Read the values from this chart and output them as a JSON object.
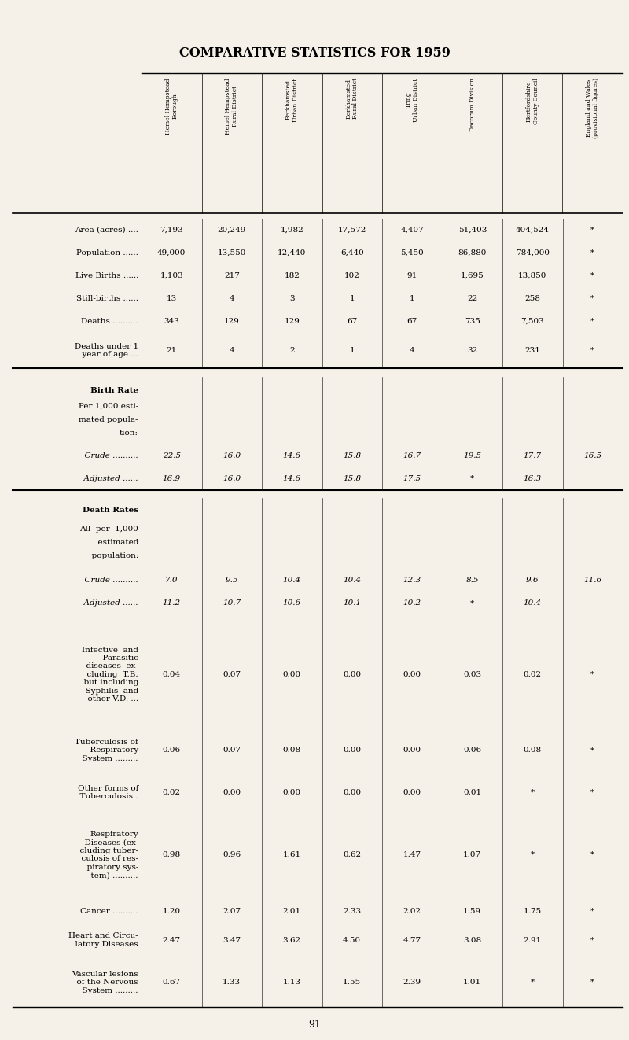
{
  "title": "COMPARATIVE STATISTICS FOR 1959",
  "bg_color": "#f5f0e8",
  "columns": [
    "Hemel Hempstead\nBorough",
    "Hemel Hempstead\nRural District",
    "Berkhamsted\nUrban District",
    "Berkhamsted\nRural District",
    "Tring\nUrban District",
    "Dacorum Division",
    "Hertfordshire\nCounty Council",
    "England and Wales\n(provisional figures)"
  ],
  "sections": [
    {
      "type": "data_block",
      "rows": [
        {
          "label": "Area (acres) ....",
          "values": [
            "7,193",
            "20,249",
            "1,982",
            "17,572",
            "4,407",
            "51,403",
            "404,524",
            "*"
          ]
        },
        {
          "label": "Population ......",
          "values": [
            "49,000",
            "13,550",
            "12,440",
            "6,440",
            "5,450",
            "86,880",
            "784,000",
            "*"
          ]
        },
        {
          "label": "Live Births ......",
          "values": [
            "1,103",
            "217",
            "182",
            "102",
            "91",
            "1,695",
            "13,850",
            "*"
          ]
        },
        {
          "label": "Still-births ......",
          "values": [
            "13",
            "4",
            "3",
            "1",
            "1",
            "22",
            "258",
            "*"
          ]
        },
        {
          "label": "Deaths ..........",
          "values": [
            "343",
            "129",
            "129",
            "67",
            "67",
            "735",
            "7,503",
            "*"
          ]
        },
        {
          "label": "Deaths under 1\n  year of age ...",
          "values": [
            "21",
            "4",
            "2",
            "1",
            "4",
            "32",
            "231",
            "*"
          ]
        }
      ]
    },
    {
      "type": "section_header",
      "label": "Birth Rate\nPer 1,000 esti-\nmated popula-\ntion:"
    },
    {
      "type": "data_block",
      "rows": [
        {
          "label": "  Crude ..........",
          "values": [
            "22.5",
            "16.0",
            "14.6",
            "15.8",
            "16.7",
            "19.5",
            "17.7",
            "16.5"
          ],
          "italic": true
        },
        {
          "label": "  Adjusted ......",
          "values": [
            "16.9",
            "16.0",
            "14.6",
            "15.8",
            "17.5",
            "*",
            "16.3",
            "—"
          ],
          "italic": true
        }
      ]
    },
    {
      "type": "section_header",
      "label": "Death Rates"
    },
    {
      "type": "subheader",
      "label": "All per 1,000\n  estimated\n  population:"
    },
    {
      "type": "data_block",
      "rows": [
        {
          "label": "  Crude ..........",
          "values": [
            "7.0",
            "9.5",
            "10.4",
            "10.4",
            "12.3",
            "8.5",
            "9.6",
            "11.6"
          ],
          "italic": true
        },
        {
          "label": "  Adjusted ......",
          "values": [
            "11.2",
            "10.7",
            "10.6",
            "10.1",
            "10.2",
            "*",
            "10.4",
            "—"
          ],
          "italic": true
        }
      ]
    },
    {
      "type": "data_block",
      "rows": [
        {
          "label": "Infective  and\n  Parasitic\n  diseases  ex-\n  cluding  T.B.\n  but including\n  Syphilis  and\n  other V.D. ...",
          "values": [
            "0.04",
            "0.07",
            "0.00",
            "0.00",
            "0.00",
            "0.03",
            "0.02",
            "*"
          ]
        },
        {
          "label": "Tuberculosis of\n  Respiratory\n  System .........",
          "values": [
            "0.06",
            "0.07",
            "0.08",
            "0.00",
            "0.00",
            "0.06",
            "0.08",
            "*"
          ]
        },
        {
          "label": "Other forms of\n  Tuberculosis .",
          "values": [
            "0.02",
            "0.00",
            "0.00",
            "0.00",
            "0.00",
            "0.01",
            "*",
            "*"
          ]
        },
        {
          "label": "Respiratory\n  Diseases (ex-\n  cluding tuber-\n  culosis of res-\n  piratory sys-\n  tem) ..........",
          "values": [
            "0.98",
            "0.96",
            "1.61",
            "0.62",
            "1.47",
            "1.07",
            "*",
            "*"
          ]
        },
        {
          "label": "Cancer ..........",
          "values": [
            "1.20",
            "2.07",
            "2.01",
            "2.33",
            "2.02",
            "1.59",
            "1.75",
            "*"
          ]
        },
        {
          "label": "Heart and Circu-\n  latory Diseases",
          "values": [
            "2.47",
            "3.47",
            "3.62",
            "4.50",
            "4.77",
            "3.08",
            "2.91",
            "*"
          ]
        },
        {
          "label": "Vascular lesions\n  of the Nervous\n  System .........",
          "values": [
            "0.67",
            "1.33",
            "1.13",
            "1.55",
            "2.39",
            "1.01",
            "*",
            "*"
          ]
        }
      ]
    }
  ],
  "footer": "91"
}
